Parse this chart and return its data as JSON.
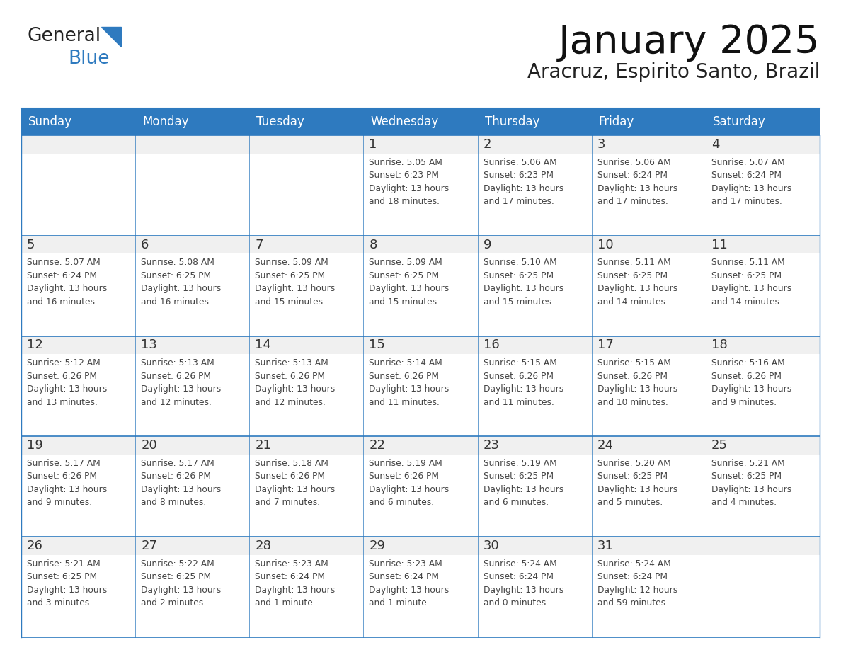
{
  "title": "January 2025",
  "subtitle": "Aracruz, Espirito Santo, Brazil",
  "header_color": "#2E7ABF",
  "header_text_color": "#FFFFFF",
  "cell_bg_color": "#FFFFFF",
  "cell_top_bg_color": "#F0F0F0",
  "border_color": "#2E7ABF",
  "row_line_color": "#2E7ABF",
  "day_number_color": "#333333",
  "text_color": "#444444",
  "days_of_week": [
    "Sunday",
    "Monday",
    "Tuesday",
    "Wednesday",
    "Thursday",
    "Friday",
    "Saturday"
  ],
  "logo_general_color": "#222222",
  "logo_blue_color": "#2E7ABF",
  "calendar_data": [
    [
      {
        "day": "",
        "info": ""
      },
      {
        "day": "",
        "info": ""
      },
      {
        "day": "",
        "info": ""
      },
      {
        "day": "1",
        "info": "Sunrise: 5:05 AM\nSunset: 6:23 PM\nDaylight: 13 hours\nand 18 minutes."
      },
      {
        "day": "2",
        "info": "Sunrise: 5:06 AM\nSunset: 6:23 PM\nDaylight: 13 hours\nand 17 minutes."
      },
      {
        "day": "3",
        "info": "Sunrise: 5:06 AM\nSunset: 6:24 PM\nDaylight: 13 hours\nand 17 minutes."
      },
      {
        "day": "4",
        "info": "Sunrise: 5:07 AM\nSunset: 6:24 PM\nDaylight: 13 hours\nand 17 minutes."
      }
    ],
    [
      {
        "day": "5",
        "info": "Sunrise: 5:07 AM\nSunset: 6:24 PM\nDaylight: 13 hours\nand 16 minutes."
      },
      {
        "day": "6",
        "info": "Sunrise: 5:08 AM\nSunset: 6:25 PM\nDaylight: 13 hours\nand 16 minutes."
      },
      {
        "day": "7",
        "info": "Sunrise: 5:09 AM\nSunset: 6:25 PM\nDaylight: 13 hours\nand 15 minutes."
      },
      {
        "day": "8",
        "info": "Sunrise: 5:09 AM\nSunset: 6:25 PM\nDaylight: 13 hours\nand 15 minutes."
      },
      {
        "day": "9",
        "info": "Sunrise: 5:10 AM\nSunset: 6:25 PM\nDaylight: 13 hours\nand 15 minutes."
      },
      {
        "day": "10",
        "info": "Sunrise: 5:11 AM\nSunset: 6:25 PM\nDaylight: 13 hours\nand 14 minutes."
      },
      {
        "day": "11",
        "info": "Sunrise: 5:11 AM\nSunset: 6:25 PM\nDaylight: 13 hours\nand 14 minutes."
      }
    ],
    [
      {
        "day": "12",
        "info": "Sunrise: 5:12 AM\nSunset: 6:26 PM\nDaylight: 13 hours\nand 13 minutes."
      },
      {
        "day": "13",
        "info": "Sunrise: 5:13 AM\nSunset: 6:26 PM\nDaylight: 13 hours\nand 12 minutes."
      },
      {
        "day": "14",
        "info": "Sunrise: 5:13 AM\nSunset: 6:26 PM\nDaylight: 13 hours\nand 12 minutes."
      },
      {
        "day": "15",
        "info": "Sunrise: 5:14 AM\nSunset: 6:26 PM\nDaylight: 13 hours\nand 11 minutes."
      },
      {
        "day": "16",
        "info": "Sunrise: 5:15 AM\nSunset: 6:26 PM\nDaylight: 13 hours\nand 11 minutes."
      },
      {
        "day": "17",
        "info": "Sunrise: 5:15 AM\nSunset: 6:26 PM\nDaylight: 13 hours\nand 10 minutes."
      },
      {
        "day": "18",
        "info": "Sunrise: 5:16 AM\nSunset: 6:26 PM\nDaylight: 13 hours\nand 9 minutes."
      }
    ],
    [
      {
        "day": "19",
        "info": "Sunrise: 5:17 AM\nSunset: 6:26 PM\nDaylight: 13 hours\nand 9 minutes."
      },
      {
        "day": "20",
        "info": "Sunrise: 5:17 AM\nSunset: 6:26 PM\nDaylight: 13 hours\nand 8 minutes."
      },
      {
        "day": "21",
        "info": "Sunrise: 5:18 AM\nSunset: 6:26 PM\nDaylight: 13 hours\nand 7 minutes."
      },
      {
        "day": "22",
        "info": "Sunrise: 5:19 AM\nSunset: 6:26 PM\nDaylight: 13 hours\nand 6 minutes."
      },
      {
        "day": "23",
        "info": "Sunrise: 5:19 AM\nSunset: 6:25 PM\nDaylight: 13 hours\nand 6 minutes."
      },
      {
        "day": "24",
        "info": "Sunrise: 5:20 AM\nSunset: 6:25 PM\nDaylight: 13 hours\nand 5 minutes."
      },
      {
        "day": "25",
        "info": "Sunrise: 5:21 AM\nSunset: 6:25 PM\nDaylight: 13 hours\nand 4 minutes."
      }
    ],
    [
      {
        "day": "26",
        "info": "Sunrise: 5:21 AM\nSunset: 6:25 PM\nDaylight: 13 hours\nand 3 minutes."
      },
      {
        "day": "27",
        "info": "Sunrise: 5:22 AM\nSunset: 6:25 PM\nDaylight: 13 hours\nand 2 minutes."
      },
      {
        "day": "28",
        "info": "Sunrise: 5:23 AM\nSunset: 6:24 PM\nDaylight: 13 hours\nand 1 minute."
      },
      {
        "day": "29",
        "info": "Sunrise: 5:23 AM\nSunset: 6:24 PM\nDaylight: 13 hours\nand 1 minute."
      },
      {
        "day": "30",
        "info": "Sunrise: 5:24 AM\nSunset: 6:24 PM\nDaylight: 13 hours\nand 0 minutes."
      },
      {
        "day": "31",
        "info": "Sunrise: 5:24 AM\nSunset: 6:24 PM\nDaylight: 12 hours\nand 59 minutes."
      },
      {
        "day": "",
        "info": ""
      }
    ]
  ]
}
